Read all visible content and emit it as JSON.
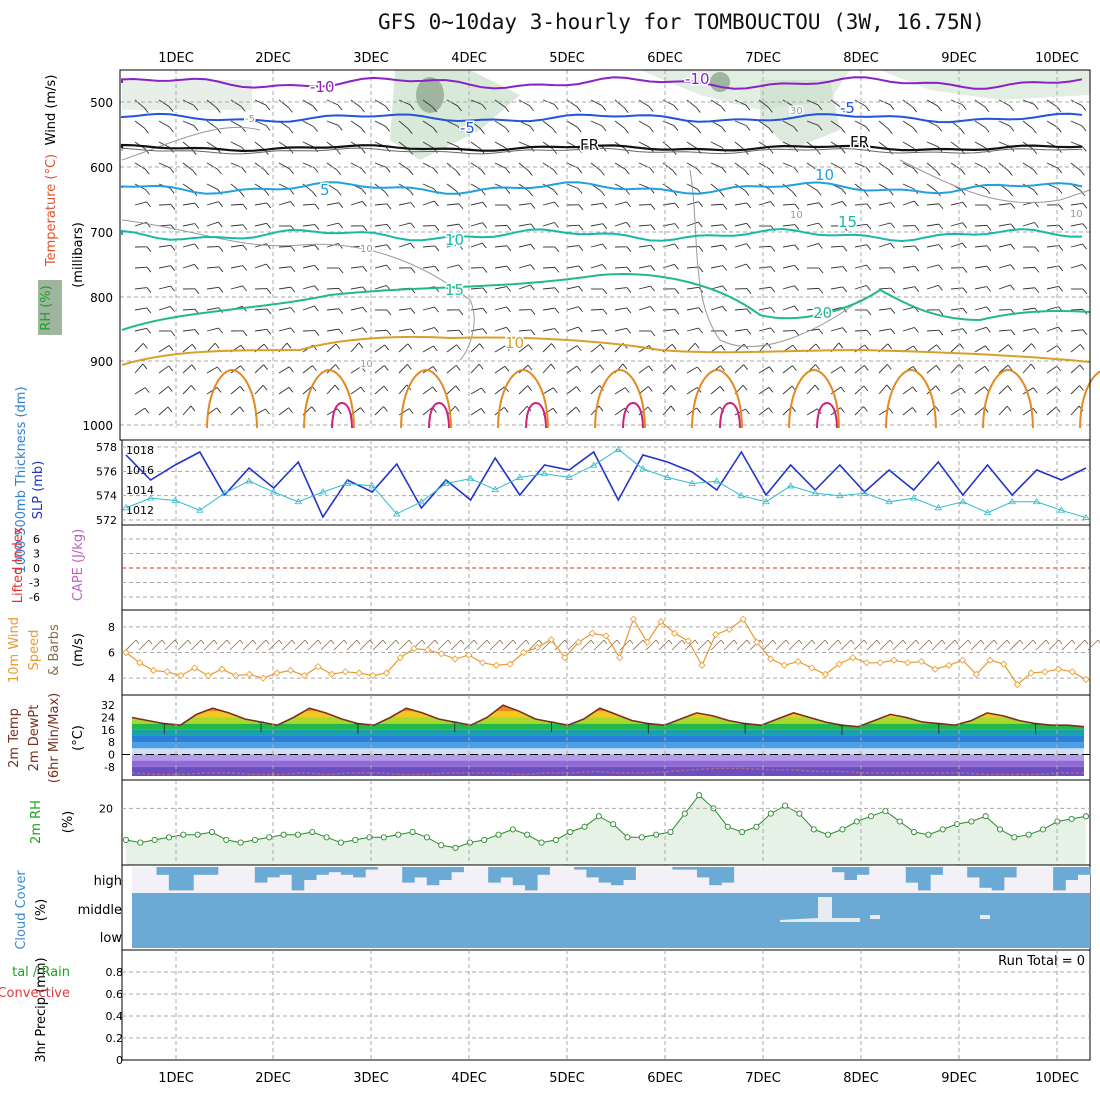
{
  "title": "GFS 0~10day 3-hourly for TOMBOUCTOU (3W, 16.75N)",
  "dates": [
    "1DEC",
    "2DEC",
    "3DEC",
    "4DEC",
    "5DEC",
    "6DEC",
    "7DEC",
    "8DEC",
    "9DEC",
    "10DEC"
  ],
  "panels": {
    "upper": {
      "ylabel_wind": "Wind (m/s)",
      "ylabel_temp": "Temperature (°C)",
      "ylabel_rh": "RH (%)",
      "ylabel_unit": "(millibars)",
      "yticks": [
        "500",
        "600",
        "700",
        "800",
        "900",
        "1000"
      ],
      "contour_labels": [
        "-10",
        "-10",
        "-5",
        "-5",
        "FR",
        "FR",
        "-5",
        "5",
        "10",
        "10",
        "15",
        "15",
        "20",
        "10",
        "10",
        "10",
        "30",
        "10",
        "10"
      ]
    },
    "thickness": {
      "ylabel_left": "1000-500mb Thickness (dm)",
      "ylabel_right": "SLP (mb)",
      "yticks_left": [
        "572",
        "574",
        "576",
        "578"
      ],
      "yticks_right": [
        "1012",
        "1014",
        "1016",
        "1018"
      ]
    },
    "cape": {
      "ylabel_li": "Lifted Index",
      "ylabel_cape": "CAPE (J/kg)",
      "yticks": [
        "6",
        "3",
        "0",
        "-3",
        "-6"
      ]
    },
    "wind10": {
      "ylabel_a": "10m Wind",
      "ylabel_b": "Speed",
      "ylabel_c": "& Barbs",
      "ylabel_unit": "(m/s)",
      "yticks": [
        "4",
        "6",
        "8"
      ]
    },
    "temp2m": {
      "ylabel_a": "2m Temp",
      "ylabel_b": "2m DewPt",
      "ylabel_c": "(6hr Min/Max)",
      "ylabel_unit": "(°C)",
      "yticks": [
        "32",
        "24",
        "16",
        "8",
        "0",
        "-8"
      ]
    },
    "rh2m": {
      "ylabel": "2m RH",
      "ylabel_unit": "(%)",
      "yticks": [
        "20"
      ]
    },
    "cloud": {
      "ylabel": "Cloud Cover",
      "ylabel_unit": "(%)",
      "levels": [
        "high",
        "middle",
        "low"
      ]
    },
    "precip": {
      "ylabel_a": "tal / Rain",
      "ylabel_b": "Convective",
      "ylabel_c": "3hr Precip (mm)",
      "yticks": [
        "0",
        "0.2",
        "0.4",
        "0.6",
        "0.8"
      ],
      "run_total": "Run Total = 0"
    }
  },
  "chart_data": [
    {
      "type": "line",
      "name": "1000-500mb Thickness / SLP",
      "x": [
        "11/30 12Z",
        "11/30 18Z",
        "12/1 0Z",
        "12/1 6Z",
        "12/1 12Z",
        "12/1 18Z",
        "12/2 0Z",
        "12/2 6Z",
        "12/2 12Z",
        "12/2 18Z",
        "12/3 0Z",
        "12/3 6Z",
        "12/3 12Z",
        "12/3 18Z",
        "12/4 0Z",
        "12/4 6Z",
        "12/4 12Z",
        "12/4 18Z",
        "12/5 0Z",
        "12/5 6Z",
        "12/5 12Z",
        "12/5 18Z",
        "12/6 0Z",
        "12/6 6Z",
        "12/6 12Z",
        "12/6 18Z",
        "12/7 0Z",
        "12/7 6Z",
        "12/7 12Z",
        "12/7 18Z",
        "12/8 0Z",
        "12/8 6Z",
        "12/8 12Z",
        "12/8 18Z",
        "12/9 0Z",
        "12/9 6Z",
        "12/9 12Z",
        "12/9 18Z",
        "12/10 0Z",
        "12/10 6Z"
      ],
      "series": [
        {
          "name": "SLP (mb)",
          "color": "#2233cc",
          "values": [
            1017.5,
            1015.0,
            1016.5,
            1017.8,
            1013.5,
            1016.2,
            1014.2,
            1016.8,
            1011.3,
            1015.0,
            1013.8,
            1016.6,
            1012.2,
            1015.0,
            1013.0,
            1017.2,
            1013.5,
            1016.5,
            1016.0,
            1017.8,
            1013.0,
            1017.5,
            1016.8,
            1015.8,
            1014.0,
            1017.8,
            1013.5,
            1016.5,
            1014.0,
            1016.5,
            1013.8,
            1016.0,
            1014.0,
            1016.8,
            1013.5,
            1016.5,
            1013.5,
            1016.0,
            1015.0,
            1016.2
          ]
        },
        {
          "name": "1000-500mb Thickness (dm)",
          "color": "#33bbcc",
          "values": [
            573.0,
            573.8,
            573.6,
            572.8,
            574.2,
            575.2,
            574.3,
            573.5,
            574.3,
            575.0,
            574.8,
            572.5,
            573.5,
            575.0,
            575.4,
            574.5,
            575.5,
            575.8,
            575.5,
            576.5,
            577.8,
            576.2,
            575.5,
            575.0,
            575.2,
            574.0,
            573.5,
            574.8,
            574.2,
            574.0,
            574.2,
            573.5,
            573.8,
            573.0,
            573.5,
            572.6,
            573.5,
            573.5,
            572.8,
            572.2
          ]
        }
      ],
      "ylim_left": [
        572,
        578
      ],
      "ylim_right": [
        1011,
        1018.5
      ]
    },
    {
      "type": "line",
      "name": "10m Wind Speed",
      "series": [
        {
          "name": "10m Wind Speed (m/s)",
          "color": "#e89a30",
          "values": [
            6.0,
            5.2,
            4.6,
            4.5,
            4.2,
            4.8,
            4.2,
            4.7,
            4.2,
            4.3,
            4.0,
            4.4,
            4.6,
            4.2,
            4.9,
            4.3,
            4.5,
            4.4,
            4.2,
            4.4,
            5.6,
            6.3,
            6.2,
            5.9,
            5.5,
            5.8,
            5.2,
            5.0,
            5.1,
            6.0,
            6.4,
            7.0,
            5.6,
            6.8,
            7.5,
            7.3,
            5.6,
            8.6,
            6.8,
            8.4,
            7.5,
            6.9,
            5.0,
            7.4,
            7.8,
            8.6,
            6.8,
            5.5,
            5.0,
            5.3,
            4.8,
            4.3,
            5.1,
            5.6,
            5.2,
            5.2,
            5.4,
            5.2,
            5.3,
            4.7,
            5.0,
            5.4,
            4.3,
            5.4,
            5.1,
            3.5,
            4.4,
            4.5,
            4.7,
            4.5,
            3.9
          ]
        }
      ],
      "ylim": [
        3,
        9
      ]
    },
    {
      "type": "line",
      "name": "2m Temp / DewPt",
      "series": [
        {
          "name": "2m Temp (°C)",
          "color": "#7a3020",
          "values": [
            24,
            22,
            20,
            19,
            26,
            30,
            27,
            23,
            21,
            19,
            24,
            30,
            27,
            23,
            20,
            19,
            24,
            30,
            27,
            23,
            21,
            19,
            24,
            32,
            28,
            23,
            21,
            19,
            23,
            30,
            26,
            22,
            20,
            19,
            23,
            27,
            25,
            22,
            20,
            19,
            23,
            27,
            24,
            21,
            19,
            18,
            22,
            26,
            24,
            21,
            20,
            19,
            22,
            27,
            25,
            22,
            20,
            19,
            19,
            18
          ]
        },
        {
          "name": "2m DewPt (°C)",
          "color": "#bb6688",
          "values": [
            -12,
            -13,
            -13,
            -12,
            -12,
            -13,
            -13,
            -12,
            -13,
            -12,
            -12,
            -13,
            -13,
            -12,
            -12,
            -12,
            -13,
            -12,
            -12,
            -11,
            -12,
            -12,
            -11,
            -10,
            -9,
            -9,
            -10,
            -10,
            -11,
            -11,
            -12,
            -12,
            -12,
            -12,
            -12,
            -13,
            -13,
            -13,
            -12,
            -12
          ]
        }
      ],
      "ylim": [
        -14,
        36
      ]
    },
    {
      "type": "line",
      "name": "2m RH",
      "series": [
        {
          "name": "2m RH (%)",
          "color": "#2a8a2a",
          "values": [
            8,
            7,
            8,
            9,
            10,
            10,
            11,
            8,
            7,
            8,
            9,
            10,
            10,
            11,
            9,
            7,
            8,
            9,
            9,
            10,
            11,
            9,
            6,
            5,
            7,
            8,
            10,
            12,
            10,
            7,
            8,
            11,
            13,
            17,
            14,
            9,
            9,
            10,
            11,
            18,
            25,
            20,
            13,
            11,
            13,
            18,
            21,
            18,
            12,
            10,
            12,
            15,
            17,
            19,
            15,
            11,
            10,
            12,
            14,
            15,
            17,
            12,
            9,
            10,
            12,
            15,
            16,
            17
          ]
        }
      ],
      "ylim": [
        0,
        30
      ]
    },
    {
      "type": "line",
      "name": "3hr Precip",
      "series": [
        {
          "name": "3hr Precip (mm)",
          "values": [
            0,
            0,
            0,
            0,
            0,
            0,
            0,
            0,
            0,
            0
          ]
        }
      ],
      "ylim": [
        0,
        1
      ]
    }
  ]
}
